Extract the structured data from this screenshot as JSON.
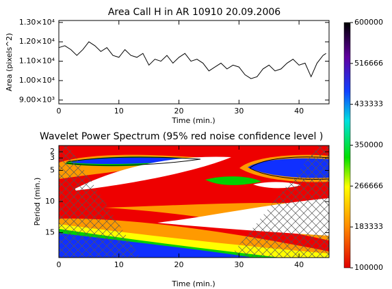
{
  "chart_data": [
    {
      "type": "line",
      "title": "Area Call H in AR 10910 20.09.2006",
      "x_label": "Time (min.)",
      "y_label": "Area (pixels^2)",
      "x": [
        0,
        1,
        2,
        3,
        4,
        5,
        6,
        7,
        8,
        9,
        10,
        11,
        12,
        13,
        14,
        15,
        16,
        17,
        18,
        19,
        20,
        21,
        22,
        23,
        24,
        25,
        26,
        27,
        28,
        29,
        30,
        31,
        32,
        33,
        34,
        35,
        36,
        37,
        38,
        39,
        40,
        41,
        42,
        43,
        44,
        44.5
      ],
      "values": [
        11700,
        11800,
        11600,
        11300,
        11600,
        12000,
        11800,
        11500,
        11700,
        11300,
        11200,
        11600,
        11300,
        11200,
        11400,
        10800,
        11100,
        11000,
        11300,
        10900,
        11200,
        11400,
        11000,
        11100,
        10900,
        10500,
        10700,
        10900,
        10600,
        10800,
        10700,
        10300,
        10100,
        10200,
        10600,
        10800,
        10500,
        10600,
        10900,
        11100,
        10800,
        10900,
        10200,
        10900,
        11300,
        11400
      ],
      "color": "#000000",
      "xlim": [
        0,
        45
      ],
      "xticks": [
        0,
        10,
        20,
        30,
        40
      ],
      "ylim": [
        8800,
        13100
      ],
      "yticks": [
        {
          "value": 9000,
          "label": "9.00×10³"
        },
        {
          "value": 10000,
          "label": "1.00×10⁴"
        },
        {
          "value": 11000,
          "label": "1.10×10⁴"
        },
        {
          "value": 12000,
          "label": "1.20×10⁴"
        },
        {
          "value": 13000,
          "label": "1.30×10⁴"
        }
      ]
    },
    {
      "type": "contour",
      "title": "Wavelet Power Spectrum (95% red noise confidence level )",
      "x_label": "Time (min.)",
      "y_label": "Period (min.)",
      "xlim": [
        0,
        45
      ],
      "xticks": [
        0,
        10,
        20,
        30,
        40
      ],
      "ylim": [
        19,
        1
      ],
      "yticks": [
        2,
        3,
        5,
        10,
        15
      ],
      "colorbar": {
        "lim": [
          100000,
          600000
        ],
        "ticks": [
          100000,
          183333,
          266666,
          350000,
          433333,
          516666,
          600000
        ]
      }
    }
  ]
}
